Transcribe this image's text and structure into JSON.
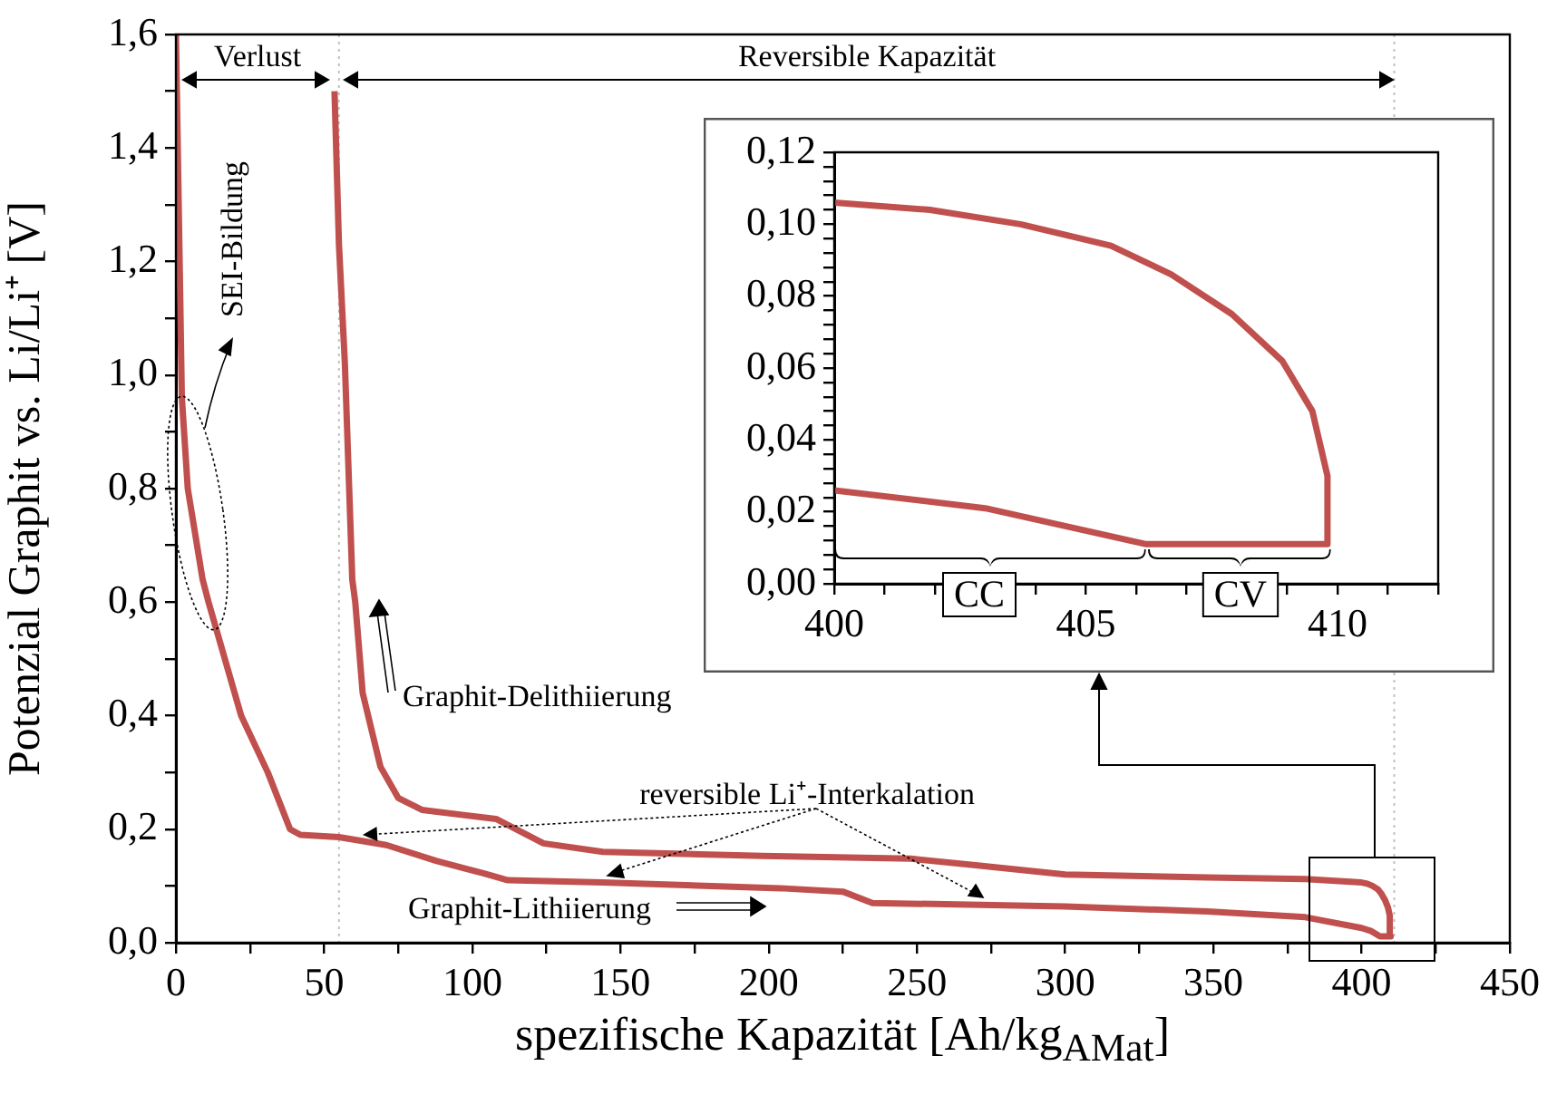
{
  "chart_data": [
    {
      "type": "line",
      "xlabel": "spezifische Kapazität [Ah/kg$_{AMat}$]",
      "ylabel": "Potenzial Graphit vs. Li/Li⁺ [V]",
      "color": "#c0504d",
      "marker": "none",
      "line_style": "solid",
      "x": [
        0,
        2,
        4,
        9,
        11,
        22,
        31,
        38.5,
        42,
        55,
        71,
        88,
        104,
        112,
        144,
        204,
        225,
        235,
        300,
        348,
        381,
        400,
        403,
        406.2,
        409.8,
        409.5,
        408.9,
        407.9,
        406.7,
        405.5,
        403.7,
        401.9,
        400,
        381,
        348,
        300,
        269,
        248,
        198,
        144,
        124,
        108,
        83,
        75,
        69,
        63,
        60.5,
        59.5,
        57,
        55,
        53.5
      ],
      "values": [
        1.6,
        0.96,
        0.8,
        0.64,
        0.6,
        0.4,
        0.3,
        0.2,
        0.19,
        0.186,
        0.172,
        0.144,
        0.122,
        0.11,
        0.106,
        0.096,
        0.09,
        0.07,
        0.064,
        0.055,
        0.045,
        0.026,
        0.021,
        0.011,
        0.011,
        0.048,
        0.062,
        0.075,
        0.086,
        0.094,
        0.1,
        0.104,
        0.106,
        0.112,
        0.115,
        0.12,
        0.137,
        0.148,
        0.153,
        0.16,
        0.175,
        0.218,
        0.234,
        0.255,
        0.31,
        0.44,
        0.6,
        0.64,
        1.02,
        1.23,
        1.5
      ],
      "xlim": [
        0,
        450
      ],
      "xticks": [
        0,
        {
          "value": 25,
          "label": null
        },
        50,
        {
          "value": 75,
          "label": null
        },
        100,
        {
          "value": 125,
          "label": null
        },
        150,
        {
          "value": 175,
          "label": null
        },
        200,
        {
          "value": 225,
          "label": null
        },
        250,
        {
          "value": 275,
          "label": null
        },
        300,
        {
          "value": 325,
          "label": null
        },
        350,
        {
          "value": 375,
          "label": null
        },
        400,
        {
          "value": 425,
          "label": null
        },
        450
      ],
      "ylim": [
        0,
        1.6
      ],
      "yticks": [
        {
          "value": 0,
          "label": "0,0"
        },
        {
          "value": 0.1,
          "label": null
        },
        {
          "value": 0.2,
          "label": "0,2"
        },
        {
          "value": 0.3,
          "label": null
        },
        {
          "value": 0.4,
          "label": "0,4"
        },
        {
          "value": 0.5,
          "label": null
        },
        {
          "value": 0.6,
          "label": "0,6"
        },
        {
          "value": 0.7,
          "label": null
        },
        {
          "value": 0.8,
          "label": "0,8"
        },
        {
          "value": 0.9,
          "label": null
        },
        {
          "value": 1.0,
          "label": "1,0"
        },
        {
          "value": 1.1,
          "label": null
        },
        {
          "value": 1.2,
          "label": "1,2"
        },
        {
          "value": 1.3,
          "label": null
        },
        {
          "value": 1.4,
          "label": "1,4"
        },
        {
          "value": 1.5,
          "label": null
        },
        {
          "value": 1.6,
          "label": "1,6"
        }
      ],
      "ref_lines": [
        {
          "axis": "x",
          "value": 55,
          "color": "#c0c0c0",
          "line_style": "dotted"
        },
        {
          "axis": "x",
          "value": 411,
          "color": "#c0c0c0",
          "line_style": "dotted"
        }
      ],
      "annotations": [
        "Verlust",
        "Reversible Kapazität",
        "SEI-Bildung",
        "Graphit-Delithiierung",
        {
          "text": "reversible Li⁺-Interkalation",
          "x": 63,
          "y": 0.19
        },
        "Graphit-Lithiierung"
      ]
    },
    {
      "type": "line",
      "color": "#c0504d",
      "marker": "none",
      "line_style": "solid",
      "x": [
        400,
        403,
        406.2,
        409.8,
        409.8,
        409.5,
        408.9,
        407.9,
        406.7,
        405.5,
        403.7,
        401.9,
        400
      ],
      "values": [
        0.026,
        0.021,
        0.011,
        0.011,
        0.03,
        0.048,
        0.062,
        0.075,
        0.086,
        0.094,
        0.1,
        0.104,
        0.106
      ],
      "xlim": [
        400,
        412
      ],
      "xticks": [
        400,
        {
          "value": 401,
          "label": null
        },
        {
          "value": 402,
          "label": null
        },
        {
          "value": 403,
          "label": null
        },
        {
          "value": 404,
          "label": null
        },
        405,
        {
          "value": 406,
          "label": null
        },
        {
          "value": 407,
          "label": null
        },
        {
          "value": 408,
          "label": null
        },
        {
          "value": 409,
          "label": null
        },
        410,
        {
          "value": 411,
          "label": null
        },
        {
          "value": 412,
          "label": null
        }
      ],
      "ylim": [
        0,
        0.12
      ],
      "yticks": [
        {
          "value": 0,
          "label": "0,00"
        },
        {
          "value": 0.004,
          "label": null
        },
        {
          "value": 0.008,
          "label": null
        },
        {
          "value": 0.012,
          "label": null
        },
        {
          "value": 0.016,
          "label": null
        },
        {
          "value": 0.02,
          "label": "0,02"
        },
        {
          "value": 0.024,
          "label": null
        },
        {
          "value": 0.028,
          "label": null
        },
        {
          "value": 0.032,
          "label": null
        },
        {
          "value": 0.036,
          "label": null
        },
        {
          "value": 0.04,
          "label": "0,04"
        },
        {
          "value": 0.044,
          "label": null
        },
        {
          "value": 0.048,
          "label": null
        },
        {
          "value": 0.052,
          "label": null
        },
        {
          "value": 0.056,
          "label": null
        },
        {
          "value": 0.06,
          "label": "0,06"
        },
        {
          "value": 0.064,
          "label": null
        },
        {
          "value": 0.068,
          "label": null
        },
        {
          "value": 0.072,
          "label": null
        },
        {
          "value": 0.076,
          "label": null
        },
        {
          "value": 0.08,
          "label": "0,08"
        },
        {
          "value": 0.084,
          "label": null
        },
        {
          "value": 0.088,
          "label": null
        },
        {
          "value": 0.092,
          "label": null
        },
        {
          "value": 0.096,
          "label": null
        },
        {
          "value": 0.1,
          "label": "0,10"
        },
        {
          "value": 0.104,
          "label": null
        },
        {
          "value": 0.108,
          "label": null
        },
        {
          "value": 0.112,
          "label": null
        },
        {
          "value": 0.116,
          "label": null
        },
        {
          "value": 0.12,
          "label": "0,12"
        }
      ],
      "annotations": [
        "CC",
        "CV"
      ]
    }
  ]
}
